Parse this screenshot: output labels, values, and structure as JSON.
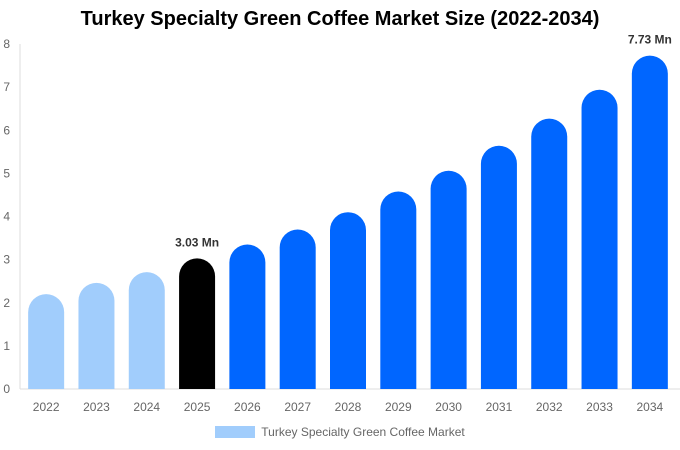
{
  "chart_data": {
    "type": "bar",
    "title": "Turkey Specialty Green Coffee Market Size (2022-2034)",
    "categories": [
      "2022",
      "2023",
      "2024",
      "2025",
      "2026",
      "2027",
      "2028",
      "2029",
      "2030",
      "2031",
      "2032",
      "2033",
      "2034"
    ],
    "series": [
      {
        "name": "Turkey Specialty Green Coffee Market",
        "values": [
          2.2,
          2.46,
          2.71,
          3.03,
          3.35,
          3.7,
          4.1,
          4.58,
          5.06,
          5.64,
          6.27,
          6.94,
          7.73
        ]
      }
    ],
    "data_labels": {
      "2025": "3.03 Mn",
      "2034": "7.73 Mn"
    },
    "ylim": [
      0,
      8
    ],
    "yticks": [
      0,
      1,
      2,
      3,
      4,
      5,
      6,
      7,
      8
    ],
    "xlabel": "",
    "ylabel": "",
    "grid": false,
    "legend": "bottom",
    "colors": {
      "historic": "#a1cdfc",
      "current": "#000000",
      "forecast": "#0066ff"
    }
  }
}
